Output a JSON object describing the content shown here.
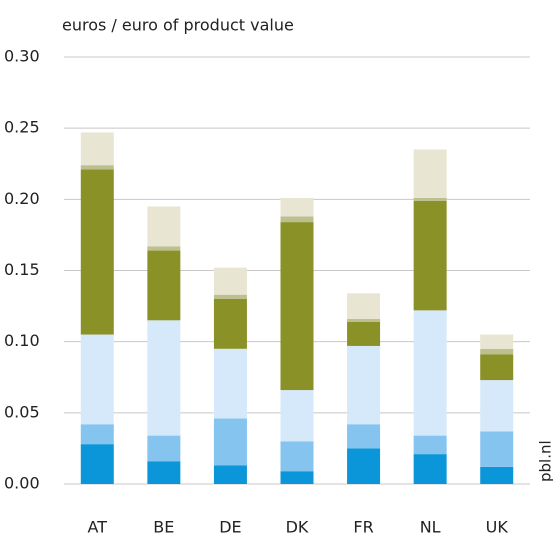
{
  "chart_data": {
    "type": "stacked_bar",
    "title": "euros / euro of product value",
    "watermark": "pbl.nl",
    "categories": [
      "AT",
      "BE",
      "DE",
      "DK",
      "FR",
      "NL",
      "UK"
    ],
    "series": [
      {
        "color": "#0a96d8",
        "values": [
          0.028,
          0.016,
          0.013,
          0.009,
          0.025,
          0.021,
          0.012
        ]
      },
      {
        "color": "#85c4ef",
        "values": [
          0.014,
          0.018,
          0.033,
          0.021,
          0.017,
          0.013,
          0.025
        ]
      },
      {
        "color": "#d6e9fa",
        "values": [
          0.063,
          0.081,
          0.049,
          0.036,
          0.055,
          0.088,
          0.036
        ]
      },
      {
        "color": "#8a9126",
        "values": [
          0.116,
          0.049,
          0.035,
          0.118,
          0.017,
          0.077,
          0.018
        ]
      },
      {
        "color": "#bcbf8e",
        "values": [
          0.003,
          0.003,
          0.003,
          0.004,
          0.002,
          0.002,
          0.004
        ]
      },
      {
        "color": "#e8e6d2",
        "values": [
          0.023,
          0.028,
          0.019,
          0.013,
          0.018,
          0.034,
          0.01
        ]
      }
    ],
    "ylim": [
      0,
      0.3
    ],
    "yticks": [
      {
        "value": 0,
        "label": "0.00"
      },
      {
        "value": 0.05,
        "label": "0.05"
      },
      {
        "value": 0.1,
        "label": "0.10"
      },
      {
        "value": 0.15,
        "label": "0.15"
      },
      {
        "value": 0.2,
        "label": "0.20"
      },
      {
        "value": 0.25,
        "label": "0.25"
      },
      {
        "value": 0.3,
        "label": "0.30"
      }
    ],
    "grid": true
  }
}
